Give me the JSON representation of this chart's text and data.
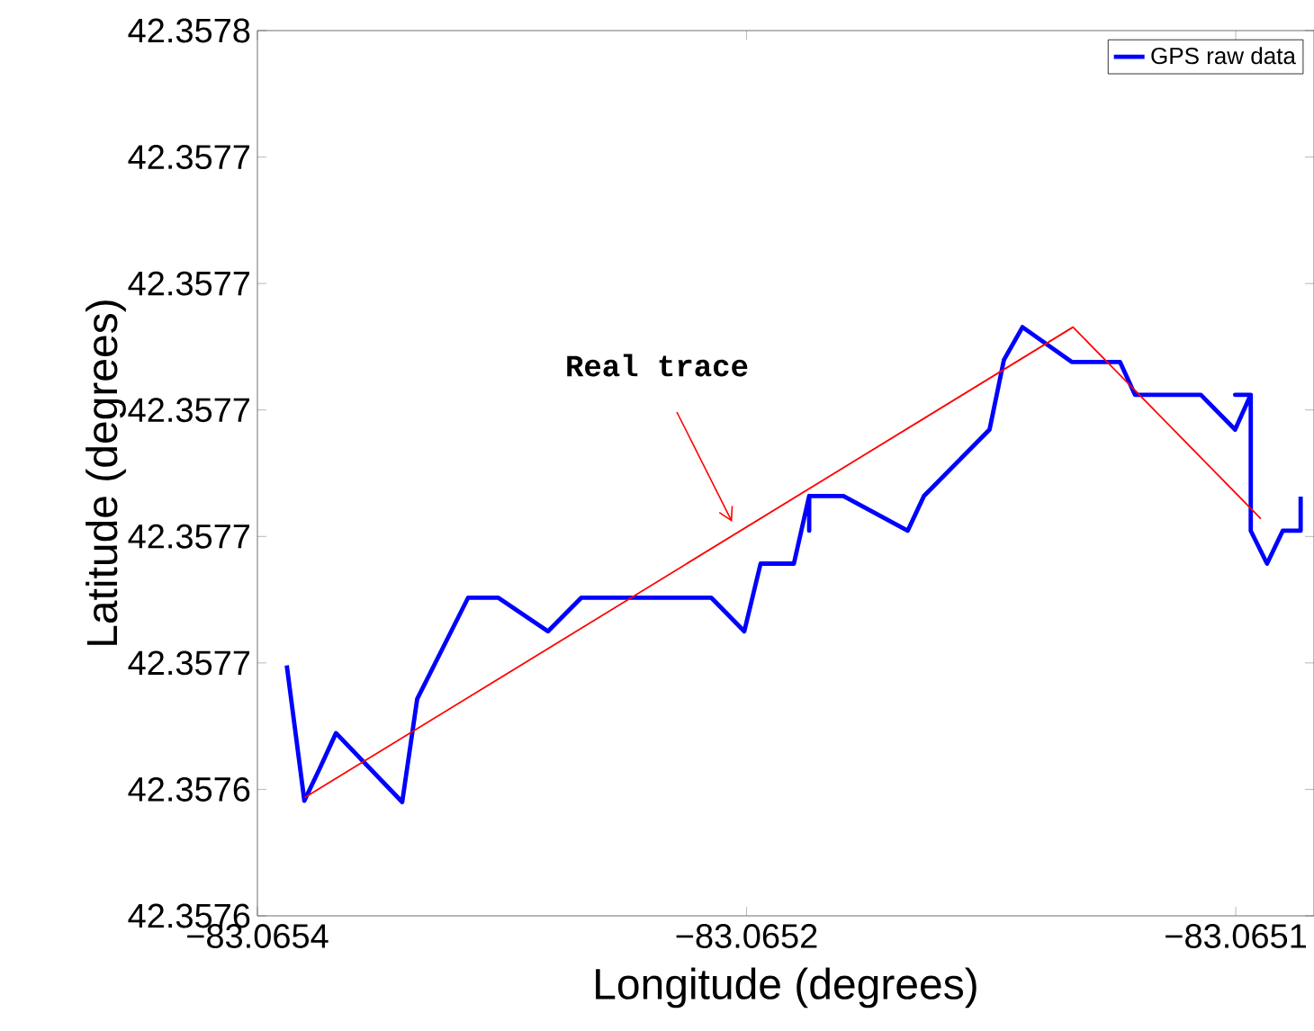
{
  "chart_data": {
    "type": "line",
    "xlabel": "Longitude (degrees)",
    "ylabel": "Latitude (degrees)",
    "xlim": [
      -83.0654,
      -83.065076
    ],
    "ylim": [
      42.35762,
      42.35776
    ],
    "xticks": [
      {
        "value": -83.0654,
        "label": "−83.0654"
      },
      {
        "value": -83.06525,
        "label": "−83.0652"
      },
      {
        "value": -83.0651,
        "label": "−83.0651"
      }
    ],
    "yticks": [
      {
        "value": 42.35762,
        "label": "42.3576"
      },
      {
        "value": 42.35764,
        "label": "42.3576"
      },
      {
        "value": 42.35766,
        "label": "42.3577"
      },
      {
        "value": 42.35768,
        "label": "42.3577"
      },
      {
        "value": 42.3577,
        "label": "42.3577"
      },
      {
        "value": 42.35772,
        "label": "42.3577"
      },
      {
        "value": 42.35774,
        "label": "42.3577"
      },
      {
        "value": 42.35776,
        "label": "42.3578"
      }
    ],
    "legend": "top right",
    "series": [
      {
        "name": "GPS raw data",
        "color": "#0000ff",
        "x": [
          -83.065391,
          -83.0653856,
          -83.0653808,
          -83.0653759,
          -83.0653556,
          -83.065351,
          -83.0653354,
          -83.0653261,
          -83.0653109,
          -83.0653007,
          -83.0652608,
          -83.0652507,
          -83.0652457,
          -83.0652355,
          -83.0652308,
          -83.0652308,
          -83.0652308,
          -83.0652203,
          -83.0652006,
          -83.0651956,
          -83.0651755,
          -83.0651711,
          -83.0651654,
          -83.0651503,
          -83.0651355,
          -83.0651309,
          -83.0651107,
          -83.0651002,
          -83.0650954,
          -83.0651002,
          -83.0650954,
          -83.0650954,
          -83.0650904,
          -83.0650856,
          -83.0650801,
          -83.0650801
        ],
        "values": [
          42.3576596,
          42.3576382,
          42.3576434,
          42.3576489,
          42.357638,
          42.3576543,
          42.3576703,
          42.3576703,
          42.357665,
          42.3576703,
          42.3576703,
          42.357665,
          42.3576757,
          42.3576757,
          42.3576864,
          42.3576809,
          42.3576864,
          42.3576864,
          42.3576809,
          42.3576864,
          42.3576969,
          42.3577079,
          42.3577131,
          42.3577076,
          42.3577076,
          42.3577024,
          42.3577024,
          42.3576969,
          42.3577024,
          42.3577024,
          42.3577024,
          42.3576809,
          42.3576757,
          42.3576809,
          42.3576809,
          42.3576863
        ]
      },
      {
        "type": "line",
        "color": "#ff0000",
        "x": [
          -83.0653855,
          -83.0651499,
          -83.0650923
        ],
        "values": [
          42.3576387,
          42.3577131,
          42.3576828
        ]
      }
    ],
    "annotations": [
      "Real trace"
    ]
  }
}
